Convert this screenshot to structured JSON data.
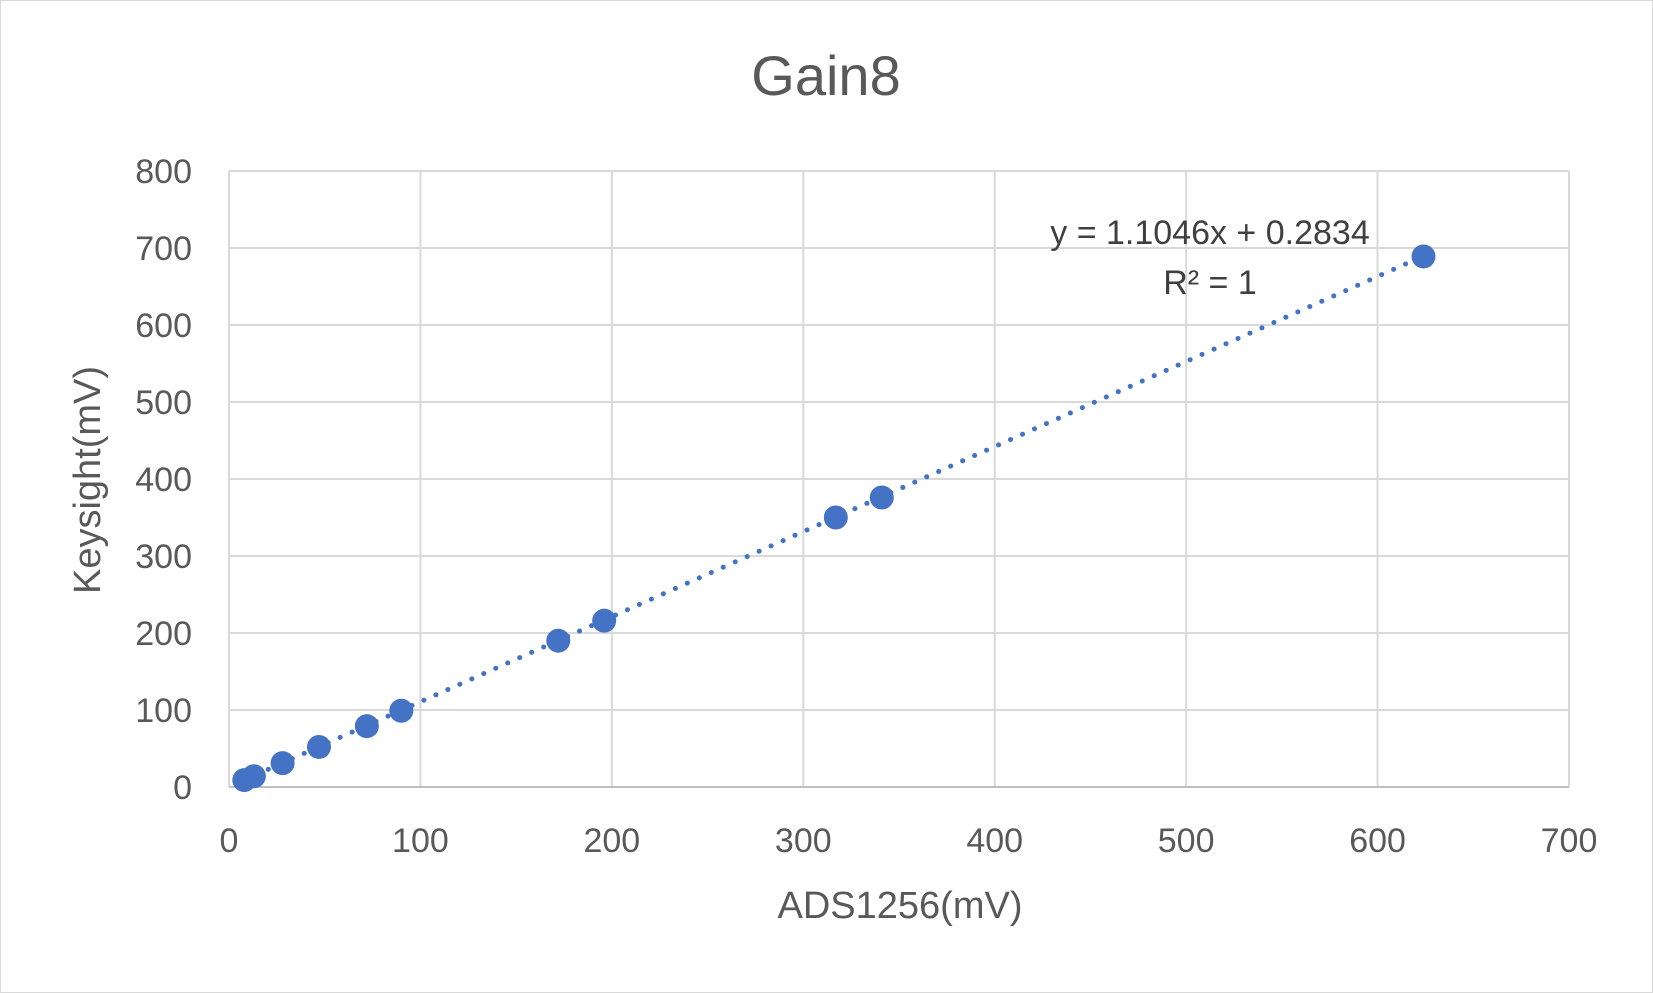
{
  "chart_data": {
    "type": "scatter",
    "title": "Gain8",
    "xlabel": "ADS1256(mV)",
    "ylabel": "Keysight(mV)",
    "xlim": [
      0,
      700
    ],
    "ylim": [
      0,
      800
    ],
    "x_ticks": [
      "0",
      "100",
      "200",
      "300",
      "400",
      "500",
      "600",
      "700"
    ],
    "y_ticks": [
      "0",
      "100",
      "200",
      "300",
      "400",
      "500",
      "600",
      "700",
      "800"
    ],
    "grid": true,
    "legend": "none",
    "colors": {
      "series": "#4472c4",
      "grid": "#d9d9d9",
      "text": "#595959"
    },
    "series": [
      {
        "x": [
          8,
          13,
          28,
          47,
          72,
          90,
          172,
          196,
          317,
          341,
          624
        ],
        "y": [
          9,
          14,
          31,
          52,
          79,
          99,
          190,
          216,
          350,
          376,
          689
        ]
      }
    ],
    "trendline": {
      "type": "linear",
      "slope": 1.1046,
      "intercept": 0.2834,
      "x_range": [
        8,
        624
      ],
      "equation": "y = 1.1046x + 0.2834",
      "r_squared": "R² = 1"
    }
  }
}
